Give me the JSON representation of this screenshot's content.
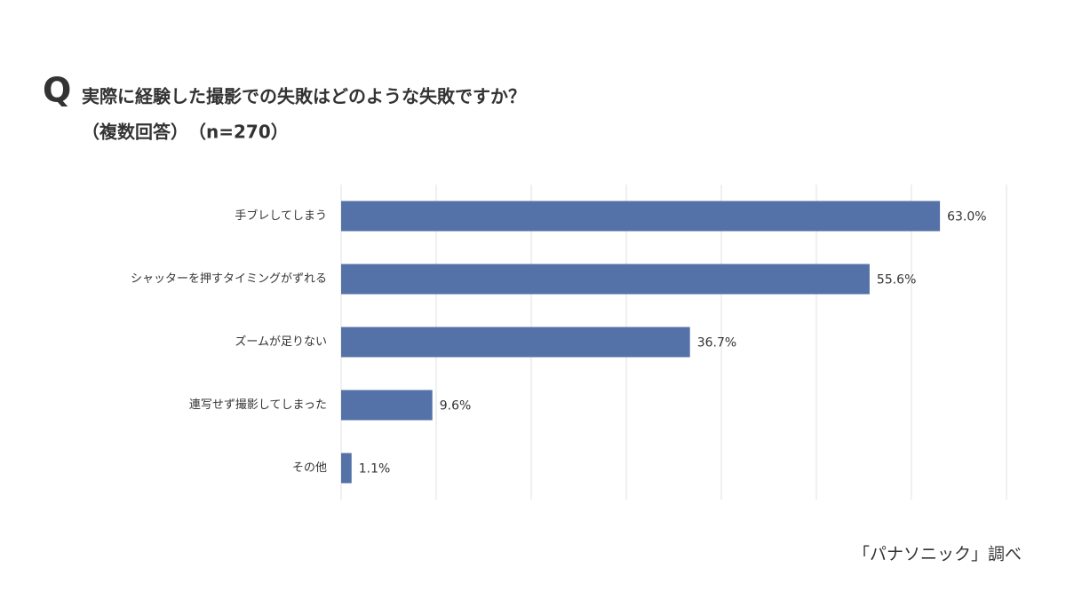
{
  "q_mark": "Q",
  "chart_data": {
    "type": "bar",
    "orientation": "horizontal",
    "title": "実際に経験した撮影での失敗はどのような失敗ですか？",
    "subtitle": "（複数回答）　（n=270）",
    "categories": [
      "手ブレしてしまう",
      "シャッターを押すタイミングがずれる",
      "ズームが足りない",
      "連写せず撮影してしまった",
      "その他"
    ],
    "values": [
      63.0,
      55.6,
      36.7,
      9.6,
      1.1
    ],
    "value_labels": [
      "63.0%",
      "55.6%",
      "36.7%",
      "9.6%",
      "1.1%"
    ],
    "color": "#5572a8",
    "xlim": [
      0,
      70
    ],
    "xticks": [
      0,
      10,
      20,
      30,
      40,
      50,
      60,
      70
    ],
    "grid": true,
    "source": "「パナソニック」調べ"
  }
}
